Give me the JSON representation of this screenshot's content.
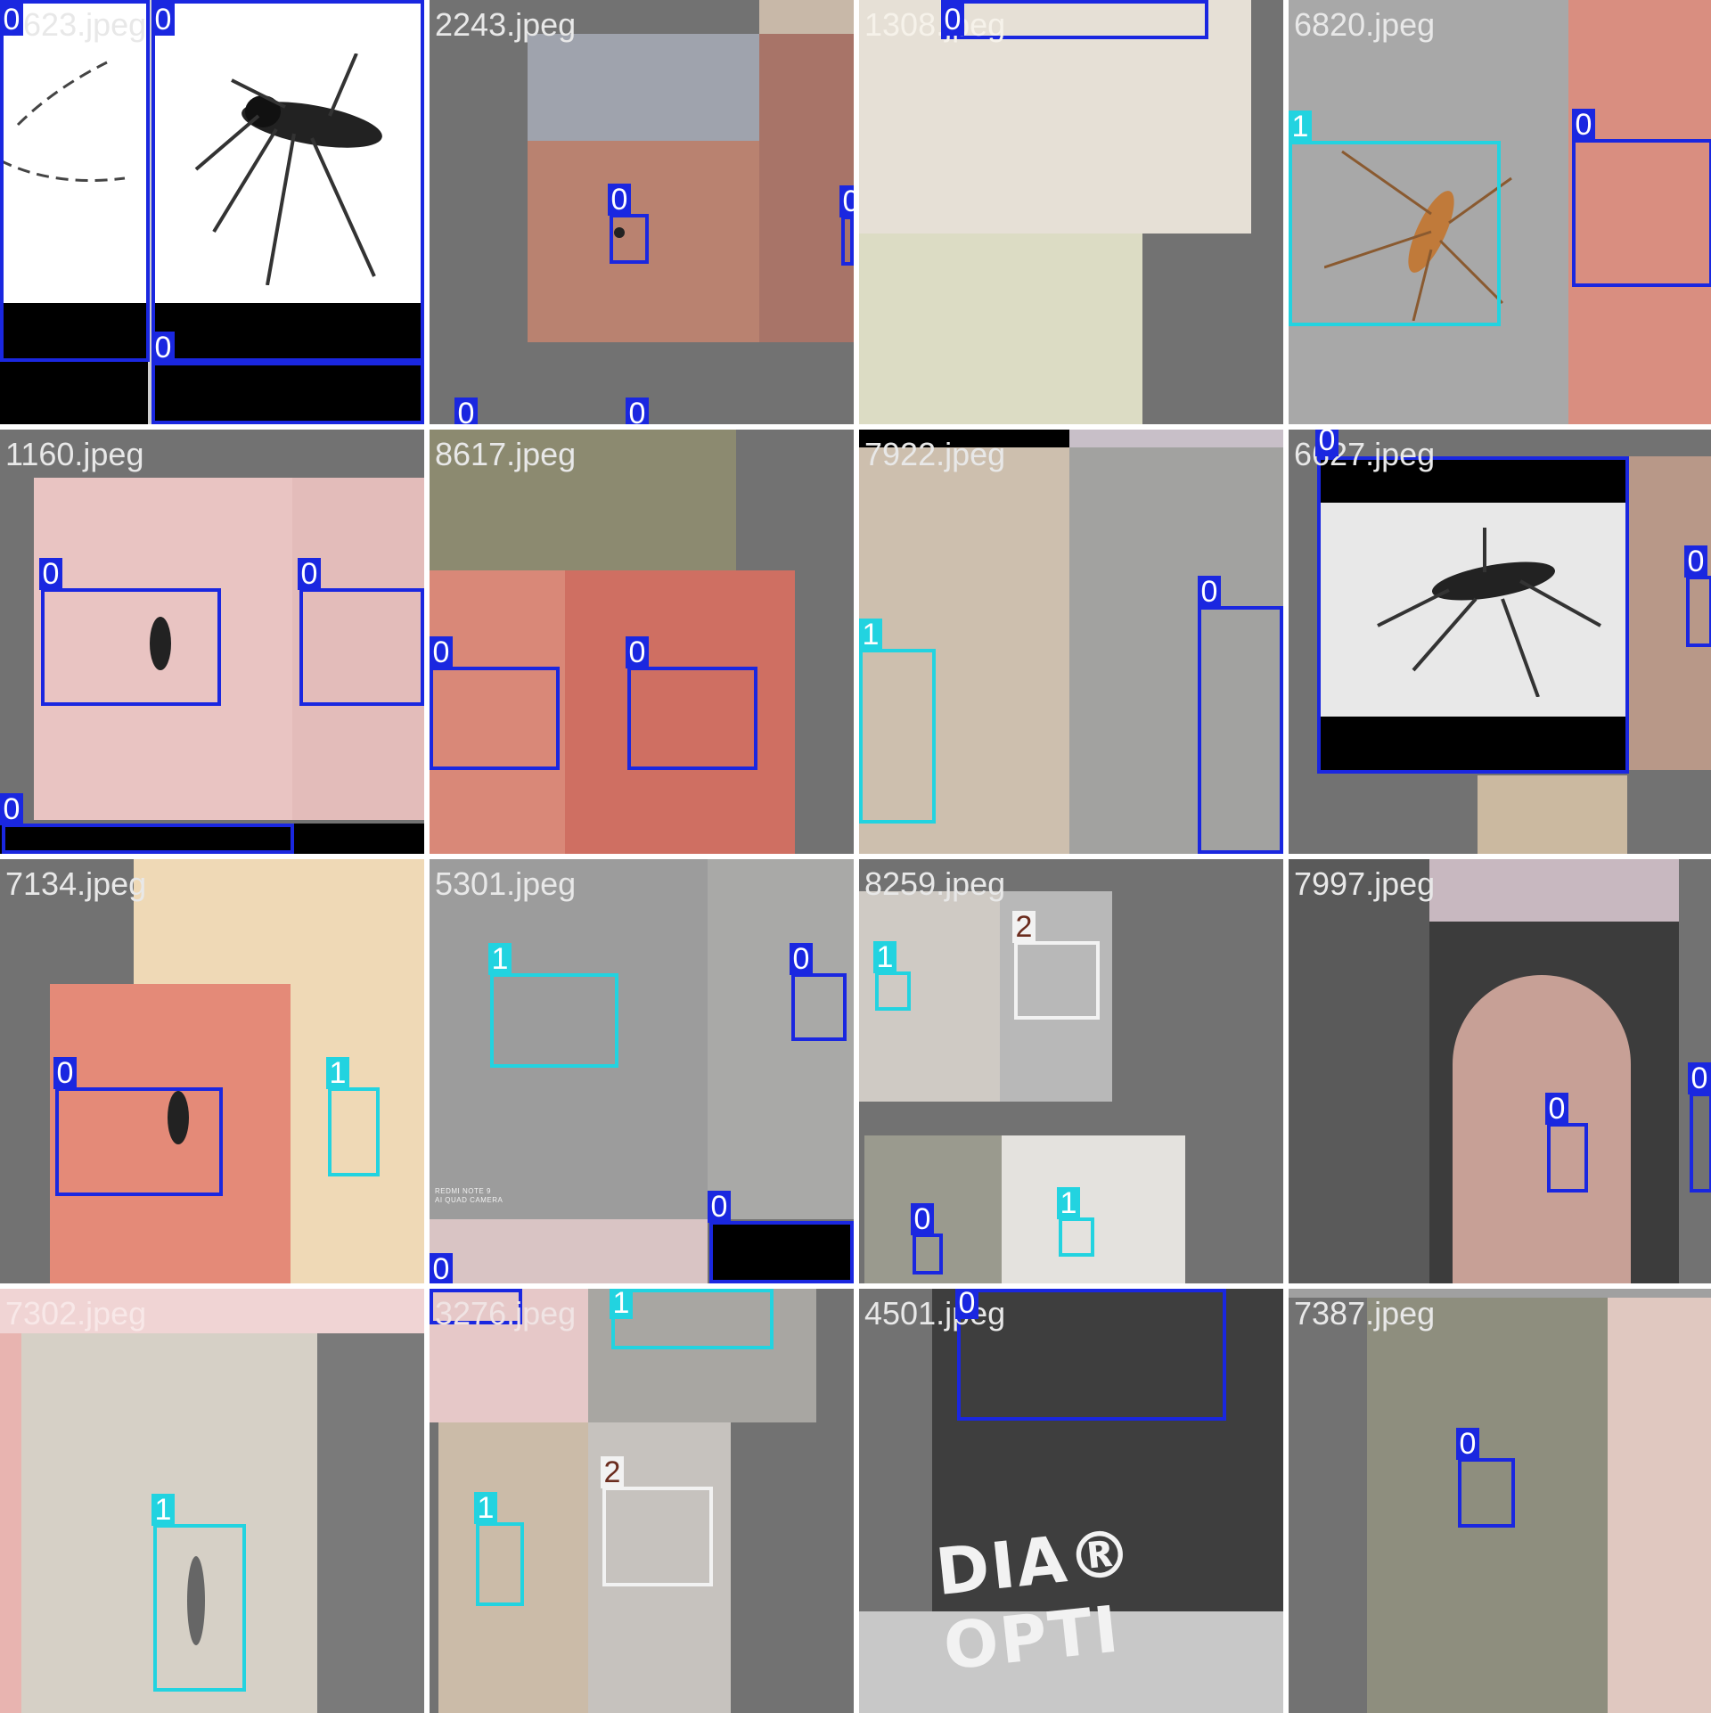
{
  "tiles": [
    {
      "filename": "0623.jpeg",
      "labels": [
        "0",
        "0",
        "0"
      ]
    },
    {
      "filename": "2243.jpeg",
      "labels": [
        "0",
        "0",
        "0",
        "0"
      ]
    },
    {
      "filename": "1308.jpeg",
      "labels": [
        "0"
      ]
    },
    {
      "filename": "6820.jpeg",
      "labels": [
        "1",
        "0"
      ]
    },
    {
      "filename": "1160.jpeg",
      "labels": [
        "0",
        "0",
        "0"
      ]
    },
    {
      "filename": "8617.jpeg",
      "labels": [
        "0",
        "0"
      ]
    },
    {
      "filename": "7922.jpeg",
      "labels": [
        "1",
        "0"
      ]
    },
    {
      "filename": "6627.jpeg",
      "labels": [
        "0",
        "0"
      ]
    },
    {
      "filename": "7134.jpeg",
      "labels": [
        "0",
        "1"
      ]
    },
    {
      "filename": "5301.jpeg",
      "labels": [
        "1",
        "0",
        "0",
        "0"
      ],
      "watermark": [
        "REDMI NOTE 9",
        "AI QUAD CAMERA"
      ]
    },
    {
      "filename": "8259.jpeg",
      "labels": [
        "1",
        "2",
        "0",
        "1"
      ]
    },
    {
      "filename": "7997.jpeg",
      "labels": [
        "0",
        "0"
      ]
    },
    {
      "filename": "7302.jpeg",
      "labels": [
        "1"
      ]
    },
    {
      "filename": "3276.jpeg",
      "labels": [
        "1",
        "1",
        "2"
      ]
    },
    {
      "filename": "4501.jpeg",
      "labels": [
        "0"
      ],
      "print_text": "DIA® OPTI"
    },
    {
      "filename": "7387.jpeg",
      "labels": [
        "0"
      ]
    }
  ],
  "class_colors": {
    "0": "#1a27e0",
    "1": "#22d3e0",
    "2": "#f2f2f2"
  }
}
